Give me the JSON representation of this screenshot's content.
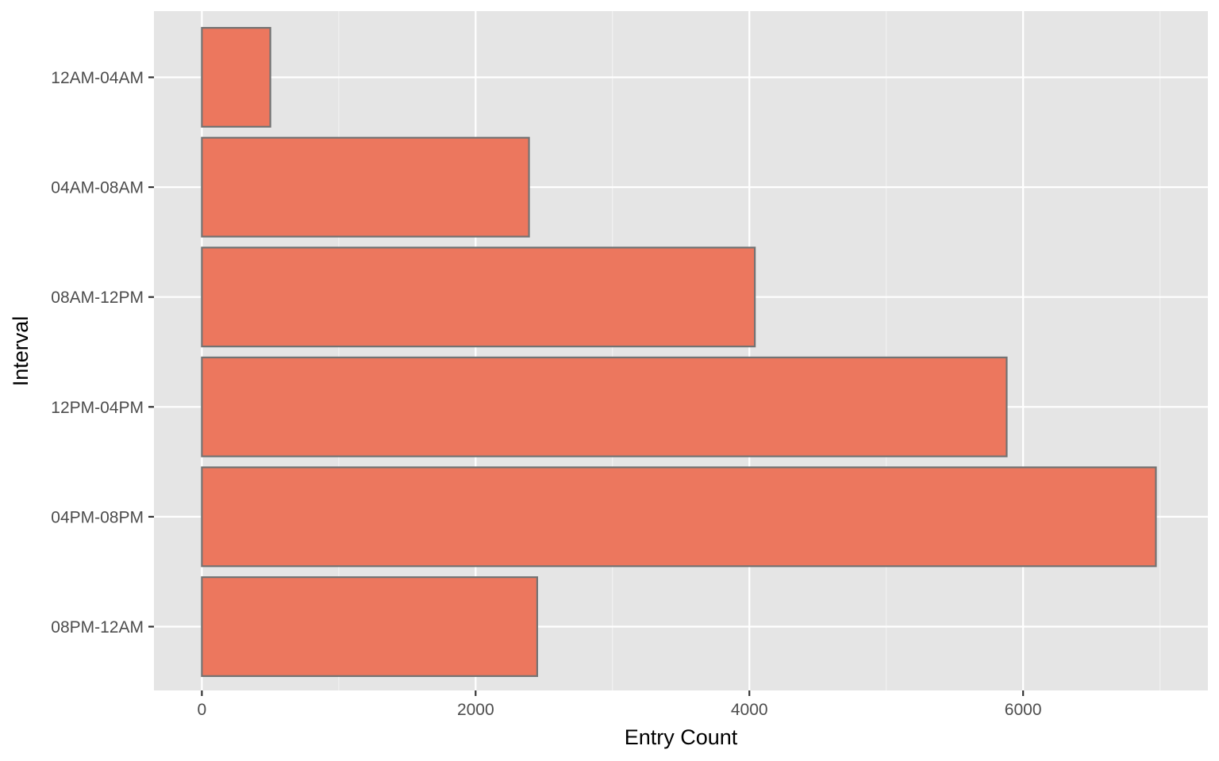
{
  "chart_data": {
    "type": "bar",
    "orientation": "horizontal",
    "categories": [
      "12AM-04AM",
      "04AM-08AM",
      "08AM-12PM",
      "12PM-04PM",
      "04PM-08PM",
      "08PM-12AM"
    ],
    "values": [
      500,
      2390,
      4040,
      5880,
      6970,
      2450
    ],
    "xlabel": "Entry Count",
    "ylabel": "Interval",
    "xlim": [
      -350,
      7350
    ],
    "x_ticks": [
      0,
      2000,
      4000,
      6000
    ],
    "x_minor_ticks": [
      1000,
      3000,
      5000,
      7000
    ],
    "x_tick_labels": [
      "0",
      "2000",
      "4000",
      "6000"
    ],
    "grid": true,
    "legend": "none",
    "colors": {
      "panel_background": "#e5e5e5",
      "bar_fill": "#ec775e",
      "bar_outline": "#737373",
      "gridline": "#ffffff"
    }
  }
}
